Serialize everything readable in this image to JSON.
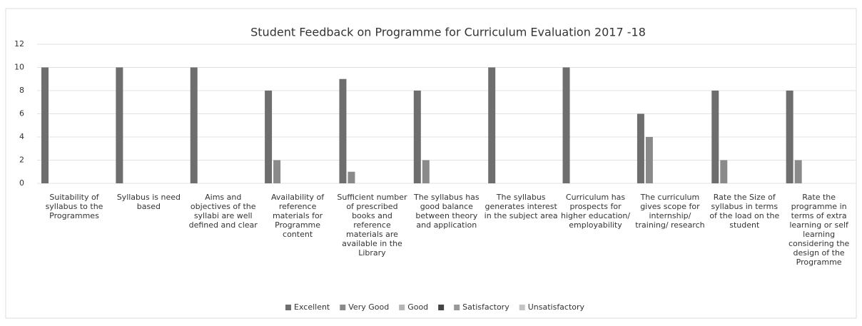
{
  "chart_data": {
    "type": "bar",
    "title": "Student Feedback on Programme for Curriculum Evaluation 2017  -18",
    "categories": [
      "Suitability of syllabus to the Programmes",
      "Syllabus is need based",
      "Aims and objectives of the syllabi are well defined and clear",
      "Availability of reference materials for Programme content",
      "Sufficient number of prescribed books and reference materials are available in the Library",
      "The syllabus has good balance between theory and application",
      "The syllabus generates interest in the subject area",
      "Curriculum has prospects for higher education/ employability",
      "The curriculum gives scope for internship/ training/ research",
      "Rate the Size of syllabus in terms of the load on the student",
      "Rate the programme in terms of extra learning or self learning considering the design of the Programme"
    ],
    "series": [
      {
        "name": "Excellent",
        "color": "#6e6e6e",
        "values": [
          10,
          10,
          10,
          8,
          9,
          8,
          10,
          10,
          6,
          8,
          8
        ]
      },
      {
        "name": "Very Good",
        "color": "#8a8a8a",
        "values": [
          0,
          0,
          0,
          2,
          1,
          2,
          0,
          0,
          4,
          2,
          2
        ]
      },
      {
        "name": "Good",
        "color": "#b5b5b5",
        "values": [
          0,
          0,
          0,
          0,
          0,
          0,
          0,
          0,
          0,
          0,
          0
        ]
      },
      {
        "name": null,
        "color": "#444444",
        "values": [
          0,
          0,
          0,
          0,
          0,
          0,
          0,
          0,
          0,
          0,
          0
        ]
      },
      {
        "name": "Satisfactory",
        "color": "#999999",
        "values": [
          0,
          0,
          0,
          0,
          0,
          0,
          0,
          0,
          0,
          0,
          0
        ]
      },
      {
        "name": "Unsatisfactory",
        "color": "#c4c4c4",
        "values": [
          0,
          0,
          0,
          0,
          0,
          0,
          0,
          0,
          0,
          0,
          0
        ]
      }
    ],
    "ylim": [
      0,
      12
    ],
    "yticks": [
      0,
      2,
      4,
      6,
      8,
      10,
      12
    ],
    "grid": true,
    "legend": "bottom"
  }
}
